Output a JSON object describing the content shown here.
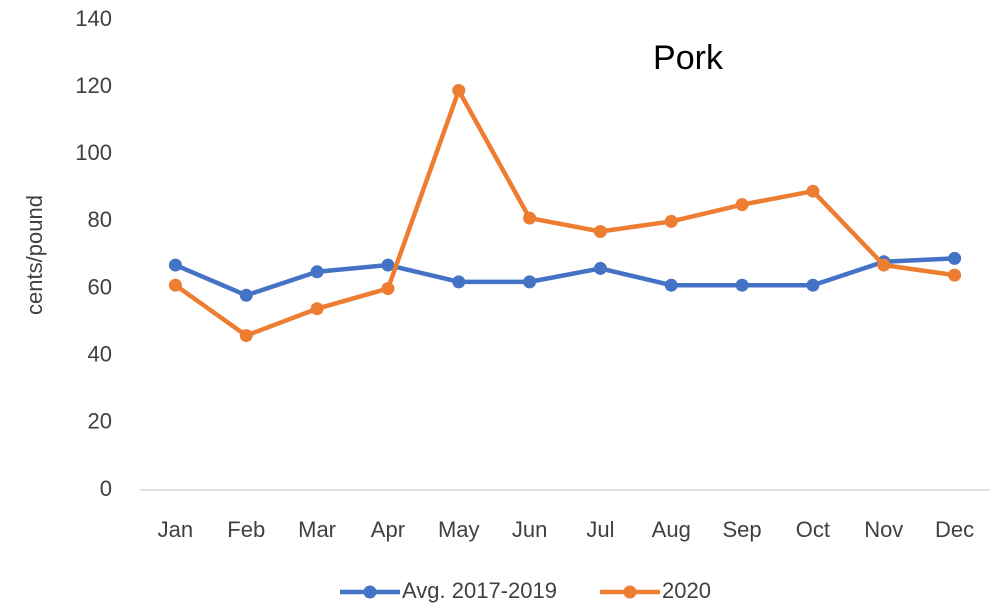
{
  "chart_data": {
    "type": "line",
    "title": "Pork",
    "y_label": "cents/pound",
    "categories": [
      "Jan",
      "Feb",
      "Mar",
      "Apr",
      "May",
      "Jun",
      "Jul",
      "Aug",
      "Sep",
      "Oct",
      "Nov",
      "Dec"
    ],
    "series": [
      {
        "name": "Avg. 2017-2019",
        "color": "#4472c4",
        "values": [
          67,
          58,
          65,
          67,
          62,
          62,
          66,
          61,
          61,
          61,
          68,
          69
        ]
      },
      {
        "name": "2020",
        "color": "#ed7d31",
        "values": [
          61,
          46,
          54,
          60,
          119,
          81,
          77,
          80,
          85,
          89,
          67,
          64
        ]
      }
    ],
    "ylim": [
      0,
      140
    ],
    "yticks": [
      0,
      20,
      40,
      60,
      80,
      100,
      120,
      140
    ],
    "grid": false,
    "legend": "bottom"
  }
}
